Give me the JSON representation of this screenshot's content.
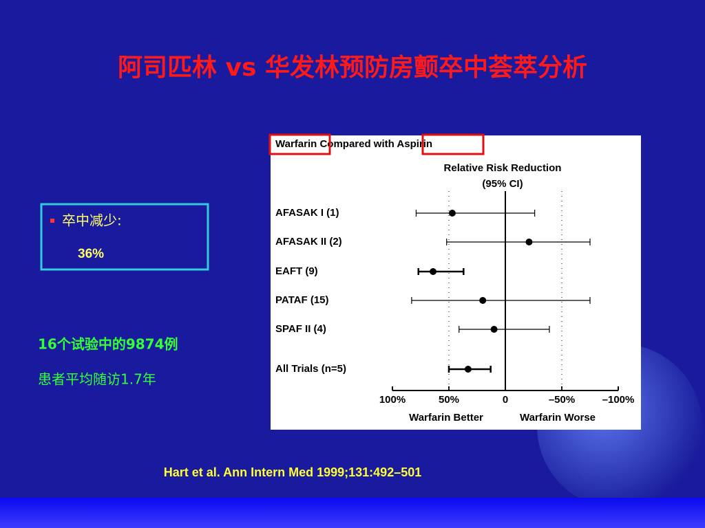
{
  "slide_title": "阿司匹林 vs 华发林预防房颤卒中荟萃分析",
  "summary_box": {
    "bullet": "卒中减少:",
    "value": "36%"
  },
  "notes": [
    "16个试验中的9874例",
    "患者平均随访1.7年"
  ],
  "citation": "Hart et al. Ann Intern Med 1999;131:492–501",
  "chart_data": {
    "type": "forest",
    "title": "Warfarin Compared with Aspirin",
    "axis_title": [
      "Relative Risk Reduction",
      "(95% CI)"
    ],
    "categories": [
      "AFASAK I (1)",
      "AFASAK II (2)",
      "EAFT (9)",
      "PATAF (15)",
      "SPAF II (4)",
      "All Trials (n=5)"
    ],
    "values": [
      47,
      -21,
      64,
      20,
      10,
      33
    ],
    "ci_low": [
      -26,
      -75,
      37,
      -75,
      -39,
      13
    ],
    "ci_high": [
      79,
      52,
      77,
      83,
      41,
      50
    ],
    "xlim": [
      100,
      -100
    ],
    "xticks": [
      {
        "value": 100,
        "label": "100%"
      },
      {
        "value": 50,
        "label": "50%"
      },
      0,
      {
        "value": -50,
        "label": "–50%"
      },
      {
        "value": -100,
        "label": "–100%"
      }
    ],
    "dotted_lines": [
      50,
      -50
    ],
    "x_labels": [
      "Warfarin Better",
      "Warfarin Worse"
    ],
    "color": "#000000"
  }
}
